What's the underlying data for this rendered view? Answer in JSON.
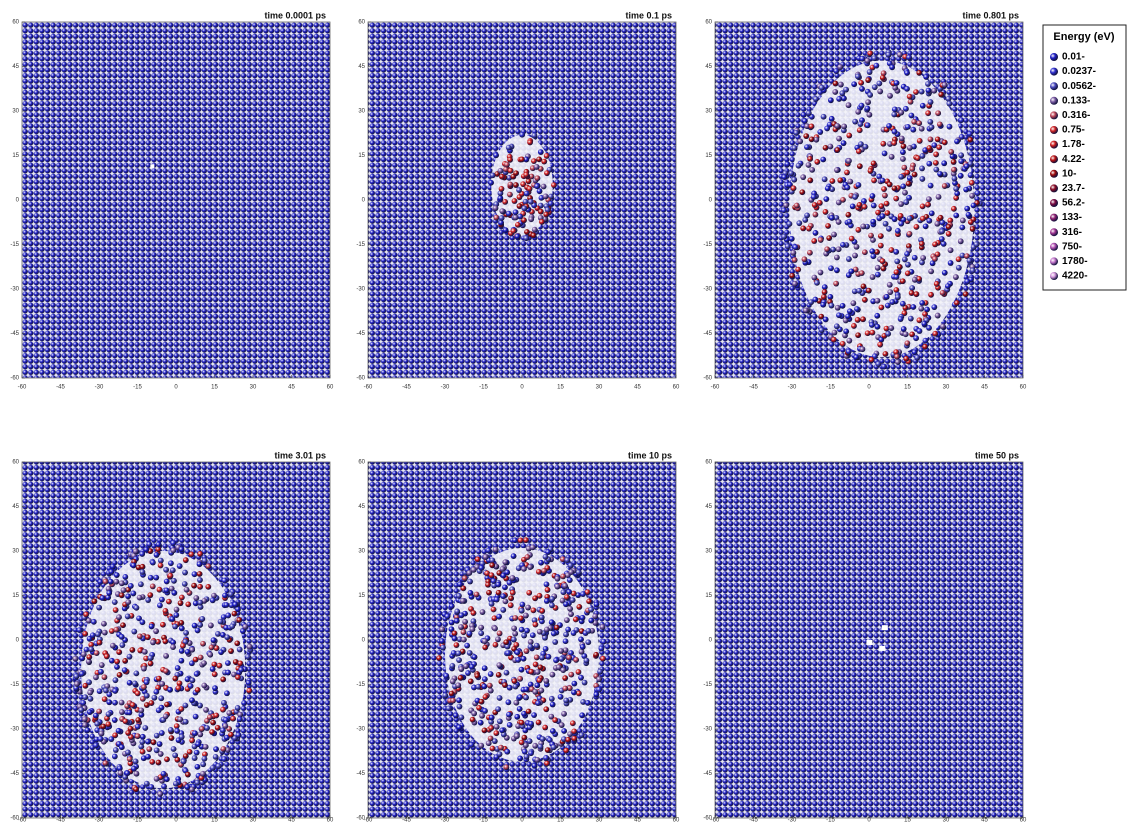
{
  "panels": [
    {
      "title": "time 0.0001 ps"
    },
    {
      "title": "time 0.1 ps"
    },
    {
      "title": "time 0.801 ps"
    },
    {
      "title": "time 3.01 ps"
    },
    {
      "title": "time 10 ps"
    },
    {
      "title": "time 50 ps"
    }
  ],
  "axes": {
    "lim": [
      -60,
      60
    ],
    "ticks": [
      -60,
      -45,
      -30,
      -15,
      0,
      15,
      30,
      45,
      60
    ]
  },
  "legend": {
    "title": "Energy (eV)",
    "items": [
      {
        "label": "0.01-",
        "color": "#1e1ec8"
      },
      {
        "label": "0.0237-",
        "color": "#2e2ed0"
      },
      {
        "label": "0.0562-",
        "color": "#4a4ac0"
      },
      {
        "label": "0.133-",
        "color": "#7c5ca4"
      },
      {
        "label": "0.316-",
        "color": "#c04456"
      },
      {
        "label": "0.75-",
        "color": "#d42424"
      },
      {
        "label": "1.78-",
        "color": "#d01a1a"
      },
      {
        "label": "4.22-",
        "color": "#bc1010"
      },
      {
        "label": "10-",
        "color": "#a00808"
      },
      {
        "label": "23.7-",
        "color": "#8c0a22"
      },
      {
        "label": "56.2-",
        "color": "#7e0a42"
      },
      {
        "label": "133-",
        "color": "#902072"
      },
      {
        "label": "316-",
        "color": "#a23492"
      },
      {
        "label": "750-",
        "color": "#b452b4"
      },
      {
        "label": "1780-",
        "color": "#c474cc"
      },
      {
        "label": "4220-",
        "color": "#d496dc"
      }
    ]
  }
}
